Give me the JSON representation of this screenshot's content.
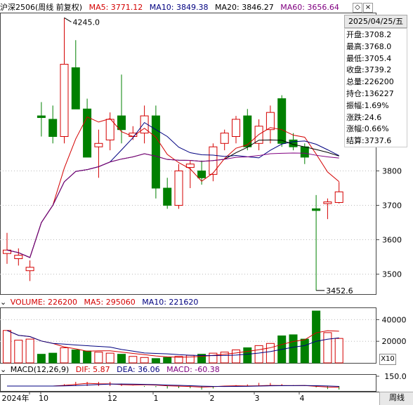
{
  "header": {
    "symbol": "沪深2506(周线 前复权)",
    "ma5_label": "MA5: 3771.12",
    "ma10_label": "MA10: 3849.38",
    "ma20_label": "MA20: 3846.27",
    "ma60_label": "MA60: 3656.64",
    "colors": {
      "ma5": "#d40000",
      "ma10": "#000080",
      "ma20": "#000000",
      "ma60": "#800080"
    }
  },
  "info": {
    "date": "2025/04/25/五",
    "rows": [
      {
        "label": "开盘:",
        "value": "3708.2",
        "color": "#000"
      },
      {
        "label": "最高:",
        "value": "3768.0",
        "color": "#000"
      },
      {
        "label": "最低:",
        "value": "3705.4",
        "color": "#000"
      },
      {
        "label": "收盘:",
        "value": "3739.2",
        "color": "#000"
      },
      {
        "label": "总量:",
        "value": "226200",
        "color": "#000"
      },
      {
        "label": "持仓:",
        "value": "136227",
        "color": "#000"
      },
      {
        "label": "振幅:",
        "value": "1.69%",
        "color": "#000"
      },
      {
        "label": "涨跌:",
        "value": "24.6",
        "color": "#000"
      },
      {
        "label": "涨幅:",
        "value": "0.66%",
        "color": "#000"
      },
      {
        "label": "结算:",
        "value": "3737.6",
        "color": "#000"
      }
    ]
  },
  "price_axis": {
    "ticks": [
      "3800",
      "3700",
      "3600",
      "3500"
    ]
  },
  "annotations": {
    "high": "4245.0",
    "low": "3452.6"
  },
  "volume": {
    "label": "VOLUME: 226200",
    "ma5_label": "MA5: 295060",
    "ma10_label": "MA10: 221620",
    "ticks": [
      "40000",
      "20000"
    ],
    "unit": "X10"
  },
  "macd": {
    "label": "MACD(12,26,9)",
    "dif_label": "DIF: 5.87",
    "dea_label": "DEA: 36.06",
    "macd_label": "MACD: -60.38",
    "tick": "150.0"
  },
  "x_axis": {
    "labels": [
      "2024年",
      "10",
      "12",
      "1",
      "2",
      "3",
      "4"
    ]
  },
  "period_button": "周线",
  "chart_data": {
    "type": "candlestick",
    "series_prices": [
      {
        "o": 3560,
        "h": 3620,
        "l": 3530,
        "c": 3570
      },
      {
        "o": 3545,
        "h": 3575,
        "l": 3525,
        "c": 3555
      },
      {
        "o": 3510,
        "h": 3540,
        "l": 3480,
        "c": 3520
      },
      {
        "o": 3960,
        "h": 4000,
        "l": 3900,
        "c": 3955
      },
      {
        "o": 3950,
        "h": 3990,
        "l": 3880,
        "c": 3900
      },
      {
        "o": 3900,
        "h": 4245,
        "l": 3880,
        "c": 4110
      },
      {
        "o": 4100,
        "h": 4180,
        "l": 3980,
        "c": 3980
      },
      {
        "o": 3980,
        "h": 4010,
        "l": 3850,
        "c": 3840
      },
      {
        "o": 3870,
        "h": 3920,
        "l": 3780,
        "c": 3880
      },
      {
        "o": 3890,
        "h": 3970,
        "l": 3860,
        "c": 3950
      },
      {
        "o": 3960,
        "h": 4080,
        "l": 3880,
        "c": 3920
      },
      {
        "o": 3900,
        "h": 3930,
        "l": 3890,
        "c": 3910
      },
      {
        "o": 3910,
        "h": 3990,
        "l": 3880,
        "c": 3960
      },
      {
        "o": 3960,
        "h": 3990,
        "l": 3720,
        "c": 3750
      },
      {
        "o": 3750,
        "h": 3780,
        "l": 3690,
        "c": 3700
      },
      {
        "o": 3700,
        "h": 3820,
        "l": 3690,
        "c": 3800
      },
      {
        "o": 3810,
        "h": 3830,
        "l": 3750,
        "c": 3820
      },
      {
        "o": 3800,
        "h": 3830,
        "l": 3760,
        "c": 3780
      },
      {
        "o": 3790,
        "h": 3880,
        "l": 3770,
        "c": 3870
      },
      {
        "o": 3880,
        "h": 3920,
        "l": 3860,
        "c": 3910
      },
      {
        "o": 3900,
        "h": 3960,
        "l": 3880,
        "c": 3950
      },
      {
        "o": 3960,
        "h": 3980,
        "l": 3860,
        "c": 3870
      },
      {
        "o": 3880,
        "h": 3950,
        "l": 3860,
        "c": 3930
      },
      {
        "o": 3920,
        "h": 3990,
        "l": 3880,
        "c": 3970
      },
      {
        "o": 4010,
        "h": 4020,
        "l": 3870,
        "c": 3880
      },
      {
        "o": 3890,
        "h": 3910,
        "l": 3860,
        "c": 3870
      },
      {
        "o": 3870,
        "h": 3880,
        "l": 3820,
        "c": 3840
      },
      {
        "o": 3690,
        "h": 3730,
        "l": 3452.6,
        "c": 3685
      },
      {
        "o": 3705,
        "h": 3720,
        "l": 3660,
        "c": 3710
      },
      {
        "o": 3708.2,
        "h": 3768,
        "l": 3705.4,
        "c": 3739.2
      }
    ],
    "volume_values": [
      30000,
      21000,
      22000,
      8000,
      9000,
      14000,
      12000,
      11000,
      10000,
      9000,
      8000,
      6000,
      5000,
      4000,
      5000,
      6000,
      7000,
      8000,
      9000,
      10000,
      12000,
      14000,
      16000,
      18000,
      25000,
      26000,
      22000,
      48000,
      28000,
      22620
    ],
    "price_range": [
      3440,
      4260
    ],
    "volume_range": [
      0,
      50000
    ]
  }
}
